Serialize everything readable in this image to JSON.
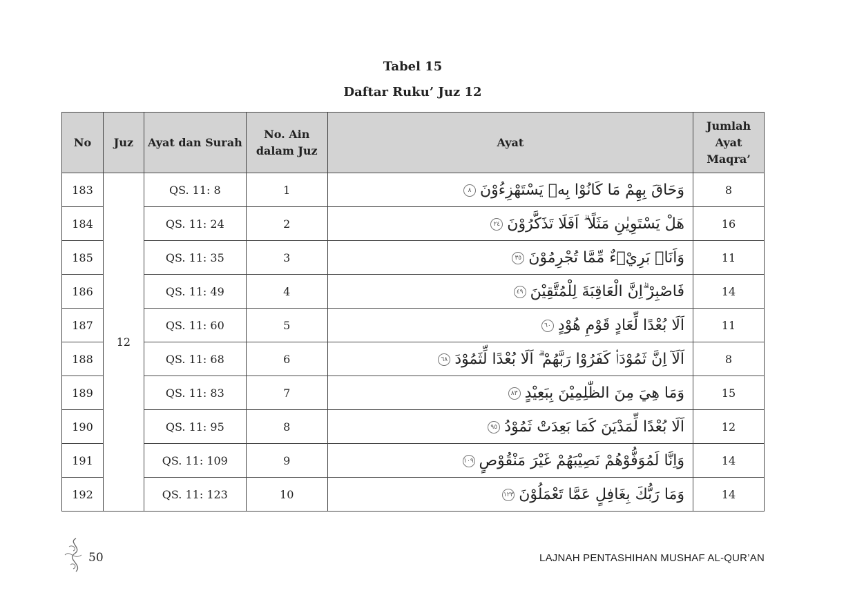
{
  "caption": {
    "table_label": "Tabel 15",
    "table_title": "Daftar Ruku’ Juz 12"
  },
  "table": {
    "headers": {
      "no": "No",
      "juz": "Juz",
      "ayat_surah": "Ayat dan Surah",
      "no_ain": "No. Ain dalam Juz",
      "ayat": "Ayat",
      "jumlah": "Jumlah Ayat Maqra’"
    },
    "juz": "12",
    "rows": [
      {
        "no": "183",
        "ref": "QS. 11: 8",
        "ain": "1",
        "ayat": "وَحَاقَ بِهِمْ مَا كَانُوْا بِهٖ يَسْتَهْزِءُوْنَ",
        "ayah_num": "٨",
        "jumlah": "8"
      },
      {
        "no": "184",
        "ref": "QS. 11: 24",
        "ain": "2",
        "ayat": "هَلْ يَسْتَوِيٰنِ مَثَلًا ۗ اَفَلَا تَذَكَّرُوْنَ",
        "ayah_num": "٢٤",
        "jumlah": "16"
      },
      {
        "no": "185",
        "ref": "QS. 11: 35",
        "ain": "3",
        "ayat": "وَاَنَا۠ بَرِيْۤءٌ مِّمَّا تُجْرِمُوْنَ",
        "ayah_num": "٣٥",
        "jumlah": "11"
      },
      {
        "no": "186",
        "ref": "QS. 11: 49",
        "ain": "4",
        "ayat": "فَاصْبِرْ ۗاِنَّ الْعَاقِبَةَ لِلْمُتَّقِيْنَ",
        "ayah_num": "٤٩",
        "jumlah": "14"
      },
      {
        "no": "187",
        "ref": "QS. 11: 60",
        "ain": "5",
        "ayat": "اَلَا بُعْدًا لِّعَادٍ قَوْمِ هُوْدٍ",
        "ayah_num": "٦٠",
        "jumlah": "11"
      },
      {
        "no": "188",
        "ref": "QS. 11: 68",
        "ain": "6",
        "ayat": "اَلَآ اِنَّ ثَمُوْدَا۟ كَفَرُوْا رَبَّهُمْ ۗ اَلَا بُعْدًا لِّثَمُوْدَ",
        "ayah_num": "٦٨",
        "jumlah": "8"
      },
      {
        "no": "189",
        "ref": "QS. 11: 83",
        "ain": "7",
        "ayat": "وَمَا هِيَ مِنَ الظّٰلِمِيْنَ بِبَعِيْدٍ",
        "ayah_num": "٨٣",
        "jumlah": "15"
      },
      {
        "no": "190",
        "ref": "QS. 11: 95",
        "ain": "8",
        "ayat": "اَلَا بُعْدًا لِّمَدْيَنَ كَمَا بَعِدَتْ ثَمُوْدُ",
        "ayah_num": "٩٥",
        "jumlah": "12"
      },
      {
        "no": "191",
        "ref": "QS. 11: 109",
        "ain": "9",
        "ayat": "وَاِنَّا لَمُوَفُّوْهُمْ نَصِيْبَهُمْ غَيْرَ مَنْقُوْصٍ",
        "ayah_num": "١٠٩",
        "jumlah": "14"
      },
      {
        "no": "192",
        "ref": "QS. 11: 123",
        "ain": "10",
        "ayat": "وَمَا رَبُّكَ بِغَافِلٍ عَمَّا تَعْمَلُوْنَ",
        "ayah_num": "١٢٣",
        "jumlah": "14"
      }
    ]
  },
  "footer": {
    "page_number": "50",
    "publisher": "LAJNAH PENTASHIHAN MUSHAF AL-QUR’AN"
  }
}
